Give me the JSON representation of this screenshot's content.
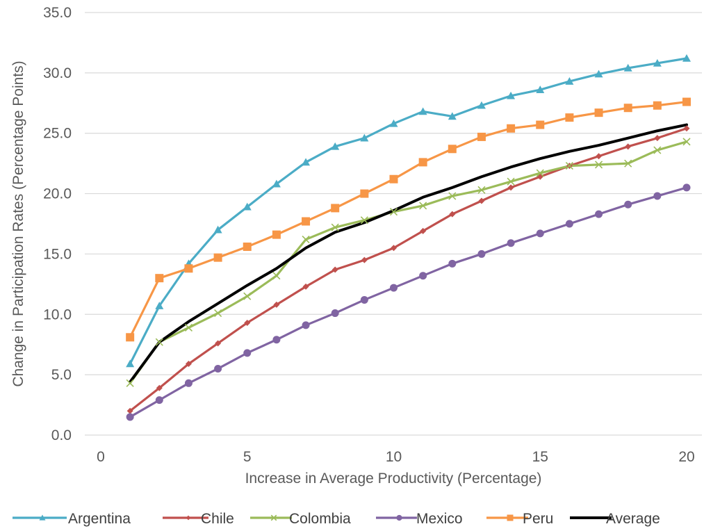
{
  "chart_data": {
    "type": "line",
    "title": "",
    "xlabel": "Increase in Average Productivity (Percentage)",
    "ylabel": "Change in Participation Rates (Percentage Points)",
    "xlim": [
      0,
      20
    ],
    "ylim": [
      0,
      35
    ],
    "x_ticks": [
      "0",
      "5",
      "10",
      "15",
      "20"
    ],
    "y_ticks": [
      "0.0",
      "5.0",
      "10.0",
      "15.0",
      "20.0",
      "25.0",
      "30.0",
      "35.0"
    ],
    "grid": "horizontal",
    "legend_position": "bottom",
    "x": [
      1,
      2,
      3,
      4,
      5,
      6,
      7,
      8,
      9,
      10,
      11,
      12,
      13,
      14,
      15,
      16,
      17,
      18,
      19,
      20
    ],
    "series": [
      {
        "name": "Argentina",
        "color": "#4BACC6",
        "marker": "triangle",
        "values": [
          5.9,
          10.7,
          14.2,
          17.0,
          18.9,
          20.8,
          22.6,
          23.9,
          24.6,
          25.8,
          26.8,
          26.4,
          27.3,
          28.1,
          28.6,
          29.3,
          29.9,
          30.4,
          30.8,
          31.2
        ]
      },
      {
        "name": "Chile",
        "color": "#C0504D",
        "marker": "diamond",
        "values": [
          2.0,
          3.9,
          5.9,
          7.6,
          9.3,
          10.8,
          12.3,
          13.7,
          14.5,
          15.5,
          16.9,
          18.3,
          19.4,
          20.5,
          21.4,
          22.3,
          23.1,
          23.9,
          24.6,
          25.4
        ]
      },
      {
        "name": "Colombia",
        "color": "#9BBB59",
        "marker": "x",
        "values": [
          4.3,
          7.7,
          8.9,
          10.1,
          11.5,
          13.2,
          16.2,
          17.2,
          17.8,
          18.5,
          19.0,
          19.8,
          20.3,
          21.0,
          21.7,
          22.3,
          22.4,
          22.5,
          23.6,
          24.3
        ]
      },
      {
        "name": "Mexico",
        "color": "#8064A2",
        "marker": "circle",
        "values": [
          1.5,
          2.9,
          4.3,
          5.5,
          6.8,
          7.9,
          9.1,
          10.1,
          11.2,
          12.2,
          13.2,
          14.2,
          15.0,
          15.9,
          16.7,
          17.5,
          18.3,
          19.1,
          19.8,
          20.5
        ]
      },
      {
        "name": "Peru",
        "color": "#F79646",
        "marker": "square",
        "values": [
          8.1,
          13.0,
          13.8,
          14.7,
          15.6,
          16.6,
          17.7,
          18.8,
          20.0,
          21.2,
          22.6,
          23.7,
          24.7,
          25.4,
          25.7,
          26.3,
          26.7,
          27.1,
          27.3,
          27.6
        ]
      },
      {
        "name": "Average",
        "color": "#000000",
        "marker": "none",
        "values": [
          4.4,
          7.7,
          9.4,
          10.9,
          12.4,
          13.8,
          15.5,
          16.8,
          17.6,
          18.6,
          19.7,
          20.5,
          21.4,
          22.2,
          22.9,
          23.5,
          24.0,
          24.6,
          25.2,
          25.7
        ]
      }
    ]
  }
}
